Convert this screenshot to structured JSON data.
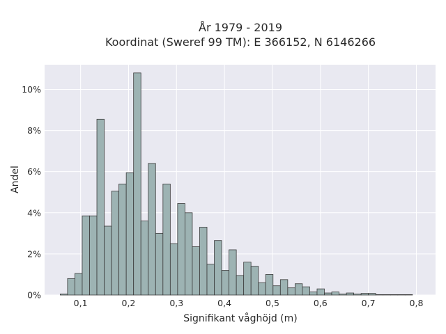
{
  "chart_data": {
    "type": "bar",
    "title": [
      "År 1979 - 2019",
      "Koordinat (Sweref 99 TM): E 366152, N 6146266"
    ],
    "xlabel": "Signifikant våghöjd (m)",
    "ylabel": "Andel",
    "xlim": [
      0.025,
      0.84
    ],
    "ylim": [
      0,
      11.2
    ],
    "x_ticks": [
      0.1,
      0.2,
      0.3,
      0.4,
      0.5,
      0.6,
      0.7,
      0.8
    ],
    "x_tick_labels": [
      "0,1",
      "0,2",
      "0,3",
      "0,4",
      "0,5",
      "0,6",
      "0,7",
      "0,8"
    ],
    "y_ticks": [
      0,
      2,
      4,
      6,
      8,
      10
    ],
    "y_tick_labels": [
      "0%",
      "2%",
      "4%",
      "6%",
      "8%",
      "10%"
    ],
    "grid": true,
    "bin_width": 0.0153,
    "bin_start": 0.0575,
    "values": [
      0.05,
      0.8,
      1.05,
      3.85,
      3.85,
      8.55,
      3.35,
      5.05,
      5.4,
      5.95,
      10.8,
      3.6,
      6.4,
      3.0,
      5.4,
      2.5,
      4.45,
      4.0,
      2.35,
      3.3,
      1.5,
      2.65,
      1.2,
      2.2,
      0.95,
      1.6,
      1.4,
      0.6,
      1.0,
      0.45,
      0.75,
      0.35,
      0.55,
      0.4,
      0.15,
      0.3,
      0.1,
      0.15,
      0.05,
      0.1,
      0.05,
      0.08,
      0.08,
      0.02,
      0.02,
      0.02,
      0.02,
      0.02
    ]
  },
  "colors": {
    "bar_fill": "#9db3b3",
    "bar_edge": "#3a3a3a",
    "plot_bg": "#e9e9f1",
    "grid": "#ffffff"
  }
}
